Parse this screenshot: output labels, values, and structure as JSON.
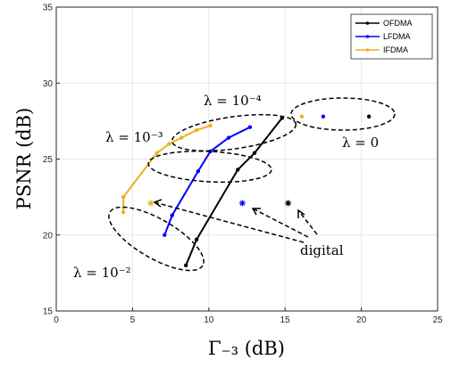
{
  "chart_data": {
    "type": "line",
    "xlabel": "Γ₋₃ (dB)",
    "ylabel": "PSNR (dB)",
    "xlim": [
      0,
      25
    ],
    "ylim": [
      15,
      35
    ],
    "xticks": [
      "0",
      "5",
      "10",
      "15",
      "20",
      "25"
    ],
    "yticks": [
      "15",
      "20",
      "25",
      "30",
      "35"
    ],
    "grid": true,
    "legend_position": "top-right",
    "series": [
      {
        "name": "OFDMA",
        "color": "#000000",
        "points": [
          [
            8.5,
            18.0
          ],
          [
            9.2,
            19.7
          ],
          [
            11.9,
            24.3
          ],
          [
            13.0,
            25.4
          ],
          [
            14.8,
            27.7
          ]
        ],
        "analog": [
          [
            20.5,
            27.8
          ]
        ],
        "digital": [
          [
            15.2,
            22.1
          ]
        ]
      },
      {
        "name": "LFDMA",
        "color": "#0000ff",
        "points": [
          [
            7.1,
            20.0
          ],
          [
            7.6,
            21.3
          ],
          [
            9.3,
            24.2
          ],
          [
            10.1,
            25.5
          ],
          [
            11.3,
            26.4
          ],
          [
            12.7,
            27.1
          ]
        ],
        "analog": [
          [
            17.5,
            27.8
          ]
        ],
        "digital": [
          [
            12.2,
            22.1
          ]
        ]
      },
      {
        "name": "IFDMA",
        "color": "#edb120",
        "points": [
          [
            4.4,
            21.5
          ],
          [
            4.4,
            22.5
          ],
          [
            6.6,
            25.4
          ],
          [
            7.4,
            26.0
          ],
          [
            8.2,
            26.4
          ],
          [
            9.2,
            26.9
          ],
          [
            10.1,
            27.2
          ]
        ],
        "analog": [
          [
            16.1,
            27.8
          ]
        ],
        "digital": [
          [
            6.2,
            22.1
          ]
        ]
      }
    ],
    "annotations": {
      "lambda_0": "λ = 0",
      "lambda_1e4": "λ = 10⁻⁴",
      "lambda_1e3": "λ = 10⁻³",
      "lambda_1e2": "λ = 10⁻²",
      "digital": "digital"
    }
  }
}
